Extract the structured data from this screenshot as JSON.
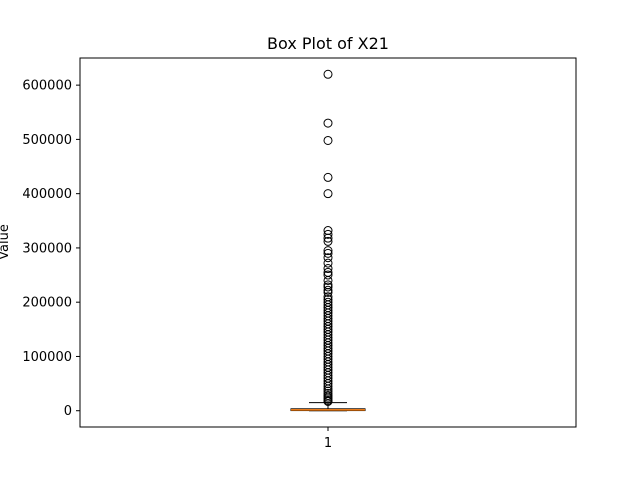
{
  "chart_data": {
    "type": "box",
    "title": "Box Plot of X21",
    "xlabel": "",
    "ylabel": "Value",
    "categories": [
      "1"
    ],
    "ylim": [
      -30000,
      650000
    ],
    "yticks": [
      0,
      100000,
      200000,
      300000,
      400000,
      500000,
      600000
    ],
    "ytick_labels": [
      "0",
      "100000",
      "200000",
      "300000",
      "400000",
      "500000",
      "600000"
    ],
    "grid": false,
    "box": {
      "whisker_low": 0,
      "q1": 300,
      "median": 1500,
      "q3": 3500,
      "whisker_high": 15000
    },
    "outliers": [
      620000,
      530000,
      498000,
      430000,
      400000,
      332000,
      325000,
      318000,
      312000,
      295000,
      290000,
      282000,
      272000,
      262000,
      255000,
      250000,
      240000,
      232000,
      228000,
      222000,
      218000,
      210000,
      205000,
      200000,
      195000,
      190000,
      185000,
      180000,
      175000,
      170000,
      165000,
      160000,
      155000,
      150000,
      145000,
      140000,
      135000,
      130000,
      125000,
      120000,
      115000,
      110000,
      105000,
      100000,
      95000,
      90000,
      85000,
      80000,
      75000,
      70000,
      65000,
      60000,
      55000,
      50000,
      45000,
      40000,
      36000,
      32000,
      28000,
      25000,
      22000,
      19000,
      17000
    ],
    "colors": {
      "median": "#ff7f0e",
      "box": "#000000",
      "outlier": "#000000"
    }
  }
}
